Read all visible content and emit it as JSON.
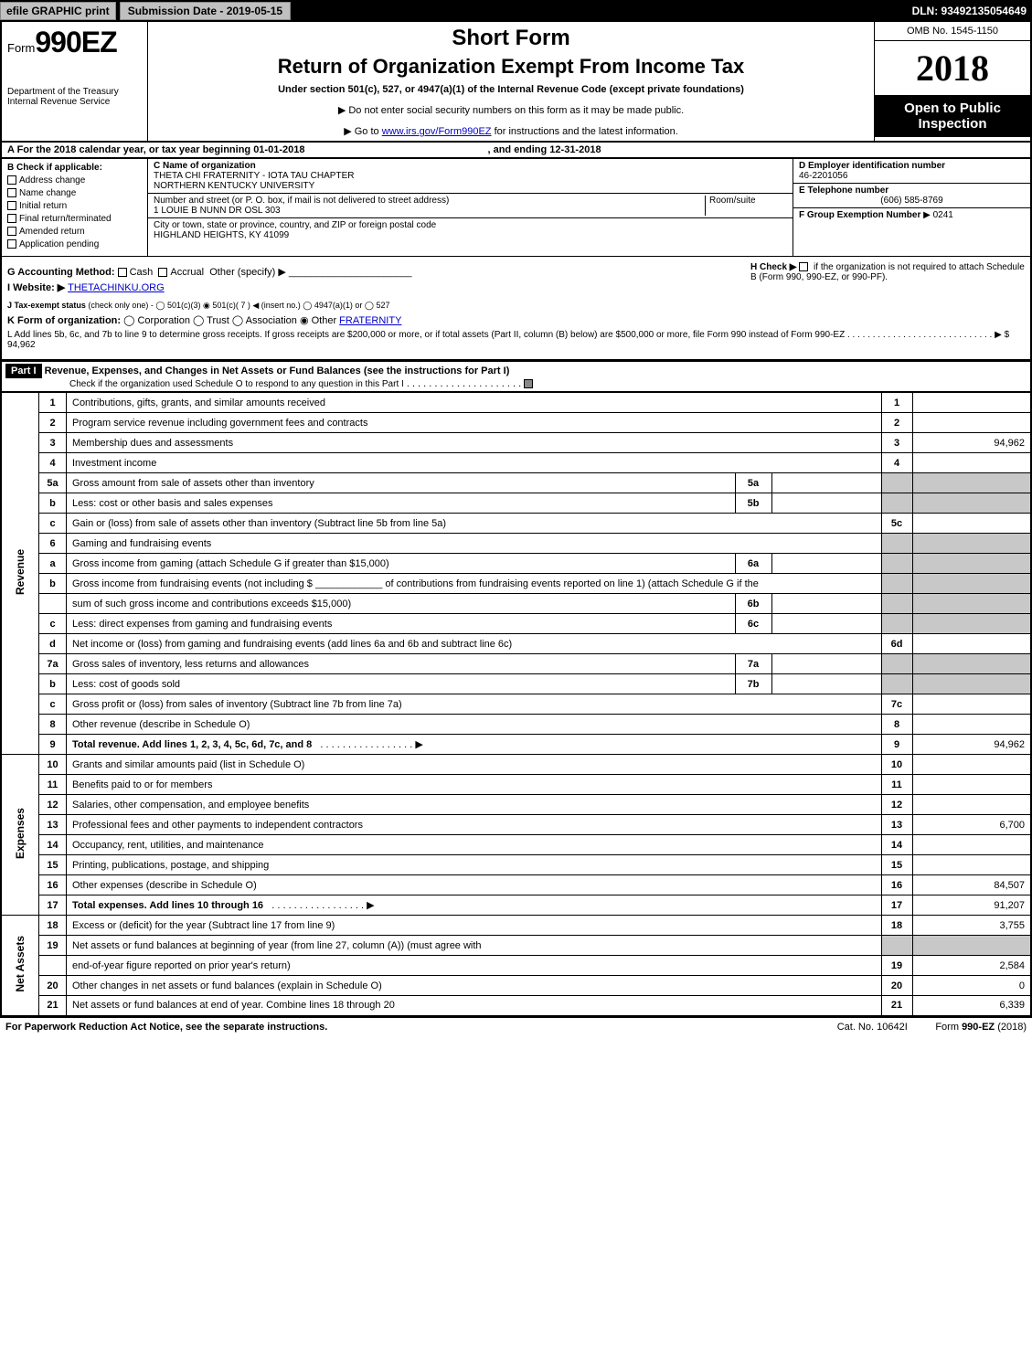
{
  "header": {
    "efile_btn": "efile GRAPHIC print",
    "submission": "Submission Date - 2019-05-15",
    "dln": "DLN: 93492135054649"
  },
  "form_label": "Form",
  "form_num": "990EZ",
  "short_form": "Short Form",
  "title": "Return of Organization Exempt From Income Tax",
  "subtitle": "Under section 501(c), 527, or 4947(a)(1) of the Internal Revenue Code (except private foundations)",
  "dept": "Department of the Treasury",
  "irs": "Internal Revenue Service",
  "no_ssn": "▶ Do not enter social security numbers on this form as it may be made public.",
  "goto_pre": "▶ Go to ",
  "goto_link": "www.irs.gov/Form990EZ",
  "goto_post": " for instructions and the latest information.",
  "omb": "OMB No. 1545-1150",
  "year": "2018",
  "open": "Open to Public Inspection",
  "A_line_pre": "A  For the 2018 calendar year, or tax year beginning 01-01-2018",
  "A_line_post": ", and ending 12-31-2018",
  "B_label": "B  Check if applicable:",
  "B_opts": [
    "Address change",
    "Name change",
    "Initial return",
    "Final return/terminated",
    "Amended return",
    "Application pending"
  ],
  "C_label": "C Name of organization",
  "C_name1": "THETA CHI FRATERNITY - IOTA TAU CHAPTER",
  "C_name2": "NORTHERN KENTUCKY UNIVERSITY",
  "C_street_label": "Number and street (or P. O. box, if mail is not delivered to street address)",
  "C_room_label": "Room/suite",
  "C_street": "1 LOUIE B NUNN DR OSL 303",
  "C_city_label": "City or town, state or province, country, and ZIP or foreign postal code",
  "C_city": "HIGHLAND HEIGHTS, KY  41099",
  "D_label": "D Employer identification number",
  "D_val": "46-2201056",
  "E_label": "E Telephone number",
  "E_val": "(606) 585-8769",
  "F_label": "F Group Exemption Number",
  "F_val": "▶ 0241",
  "G_label": "G Accounting Method:",
  "G_cash": "Cash",
  "G_accrual": "Accrual",
  "G_other": "Other (specify) ▶",
  "H_label": "H  Check ▶",
  "H_text": "if the organization is not required to attach Schedule B (Form 990, 990-EZ, or 990-PF).",
  "I_label": "I Website: ▶",
  "I_val": "THETACHINKU.ORG",
  "J_label": "J Tax-exempt status",
  "J_text": "(check only one) - ◯ 501(c)(3)  ◉ 501(c)( 7 ) ◀ (insert no.) ◯ 4947(a)(1) or  ◯ 527",
  "K_label": "K Form of organization:",
  "K_text": "◯ Corporation   ◯ Trust   ◯ Association   ◉ Other ",
  "K_link": "FRATERNITY",
  "L_text_pre": "L Add lines 5b, 6c, and 7b to line 9 to determine gross receipts. If gross receipts are $200,000 or more, or if total assets (Part II, column (B) below) are $500,000 or more, file Form 990 instead of Form 990-EZ",
  "L_amt": "▶ $ 94,962",
  "part1_label": "Part I",
  "part1_title": "Revenue, Expenses, and Changes in Net Assets or Fund Balances (see the instructions for Part I)",
  "part1_sub": "Check if the organization used Schedule O to respond to any question in this Part I",
  "sections": {
    "revenue": "Revenue",
    "expenses": "Expenses",
    "netassets": "Net Assets"
  },
  "rows": [
    {
      "n": "1",
      "d": "Contributions, gifts, grants, and similar amounts received",
      "rn": "1",
      "amt": ""
    },
    {
      "n": "2",
      "d": "Program service revenue including government fees and contracts",
      "rn": "2",
      "amt": ""
    },
    {
      "n": "3",
      "d": "Membership dues and assessments",
      "rn": "3",
      "amt": "94,962"
    },
    {
      "n": "4",
      "d": "Investment income",
      "rn": "4",
      "amt": ""
    },
    {
      "n": "5a",
      "d": "Gross amount from sale of assets other than inventory",
      "mid": "5a"
    },
    {
      "n": "b",
      "d": "Less: cost or other basis and sales expenses",
      "mid": "5b"
    },
    {
      "n": "c",
      "d": "Gain or (loss) from sale of assets other than inventory (Subtract line 5b from line 5a)",
      "rn": "5c",
      "amt": ""
    },
    {
      "n": "6",
      "d": "Gaming and fundraising events"
    },
    {
      "n": "a",
      "d": "Gross income from gaming (attach Schedule G if greater than $15,000)",
      "mid": "6a"
    },
    {
      "n": "b",
      "d": "Gross income from fundraising events (not including $ ____________ of contributions from fundraising events reported on line 1) (attach Schedule G if the"
    },
    {
      "n": "",
      "d": "sum of such gross income and contributions exceeds $15,000)",
      "mid": "6b"
    },
    {
      "n": "c",
      "d": "Less: direct expenses from gaming and fundraising events",
      "mid": "6c"
    },
    {
      "n": "d",
      "d": "Net income or (loss) from gaming and fundraising events (add lines 6a and 6b and subtract line 6c)",
      "rn": "6d",
      "amt": ""
    },
    {
      "n": "7a",
      "d": "Gross sales of inventory, less returns and allowances",
      "mid": "7a"
    },
    {
      "n": "b",
      "d": "Less: cost of goods sold",
      "mid": "7b"
    },
    {
      "n": "c",
      "d": "Gross profit or (loss) from sales of inventory (Subtract line 7b from line 7a)",
      "rn": "7c",
      "amt": ""
    },
    {
      "n": "8",
      "d": "Other revenue (describe in Schedule O)",
      "rn": "8",
      "amt": ""
    },
    {
      "n": "9",
      "d": "Total revenue. Add lines 1, 2, 3, 4, 5c, 6d, 7c, and 8",
      "rn": "9",
      "amt": "94,962",
      "arrow": true,
      "bold": true
    },
    {
      "n": "10",
      "d": "Grants and similar amounts paid (list in Schedule O)",
      "rn": "10",
      "amt": ""
    },
    {
      "n": "11",
      "d": "Benefits paid to or for members",
      "rn": "11",
      "amt": ""
    },
    {
      "n": "12",
      "d": "Salaries, other compensation, and employee benefits",
      "rn": "12",
      "amt": ""
    },
    {
      "n": "13",
      "d": "Professional fees and other payments to independent contractors",
      "rn": "13",
      "amt": "6,700"
    },
    {
      "n": "14",
      "d": "Occupancy, rent, utilities, and maintenance",
      "rn": "14",
      "amt": ""
    },
    {
      "n": "15",
      "d": "Printing, publications, postage, and shipping",
      "rn": "15",
      "amt": ""
    },
    {
      "n": "16",
      "d": "Other expenses (describe in Schedule O)",
      "rn": "16",
      "amt": "84,507"
    },
    {
      "n": "17",
      "d": "Total expenses. Add lines 10 through 16",
      "rn": "17",
      "amt": "91,207",
      "arrow": true,
      "bold": true
    },
    {
      "n": "18",
      "d": "Excess or (deficit) for the year (Subtract line 17 from line 9)",
      "rn": "18",
      "amt": "3,755"
    },
    {
      "n": "19",
      "d": "Net assets or fund balances at beginning of year (from line 27, column (A)) (must agree with"
    },
    {
      "n": "",
      "d": "end-of-year figure reported on prior year's return)",
      "rn": "19",
      "amt": "2,584"
    },
    {
      "n": "20",
      "d": "Other changes in net assets or fund balances (explain in Schedule O)",
      "rn": "20",
      "amt": "0"
    },
    {
      "n": "21",
      "d": "Net assets or fund balances at end of year. Combine lines 18 through 20",
      "rn": "21",
      "amt": "6,339"
    }
  ],
  "footer": {
    "left": "For Paperwork Reduction Act Notice, see the separate instructions.",
    "cat": "Cat. No. 10642I",
    "form": "Form 990-EZ (2018)"
  }
}
